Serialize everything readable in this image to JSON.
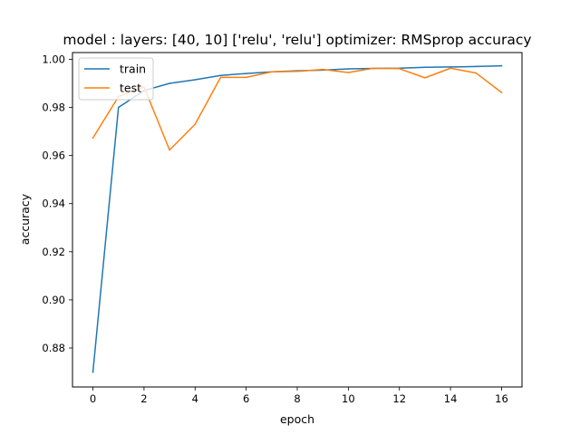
{
  "chart_data": {
    "type": "line",
    "title": "model : layers: [40, 10] ['relu', 'relu'] optimizer: RMSprop accuracy",
    "xlabel": "epoch",
    "ylabel": "accuracy",
    "xlim": [
      -0.8,
      16.8
    ],
    "ylim": [
      0.8638,
      1.0028
    ],
    "xticks": [
      0,
      2,
      4,
      6,
      8,
      10,
      12,
      14,
      16
    ],
    "xtick_labels": [
      "0",
      "2",
      "4",
      "6",
      "8",
      "10",
      "12",
      "14",
      "16"
    ],
    "yticks": [
      0.88,
      0.9,
      0.92,
      0.94,
      0.96,
      0.98,
      1.0
    ],
    "ytick_labels": [
      "0.88",
      "0.90",
      "0.92",
      "0.94",
      "0.96",
      "0.98",
      "1.00"
    ],
    "grid": false,
    "legend": "upper left",
    "x": [
      0,
      1,
      2,
      3,
      4,
      5,
      6,
      7,
      8,
      9,
      10,
      11,
      12,
      13,
      14,
      15,
      16
    ],
    "series": [
      {
        "name": "train",
        "color": "#1f77b4",
        "values": [
          0.87,
          0.98,
          0.987,
          0.99,
          0.9915,
          0.9933,
          0.9941,
          0.9948,
          0.9952,
          0.9955,
          0.996,
          0.9962,
          0.9963,
          0.9967,
          0.9968,
          0.997,
          0.9973
        ]
      },
      {
        "name": "test",
        "color": "#ff7f0e",
        "values": [
          0.9673,
          0.9845,
          0.9885,
          0.9623,
          0.973,
          0.9925,
          0.9925,
          0.9948,
          0.995,
          0.9958,
          0.9945,
          0.9963,
          0.9961,
          0.9923,
          0.9963,
          0.9943,
          0.9862
        ]
      }
    ]
  }
}
